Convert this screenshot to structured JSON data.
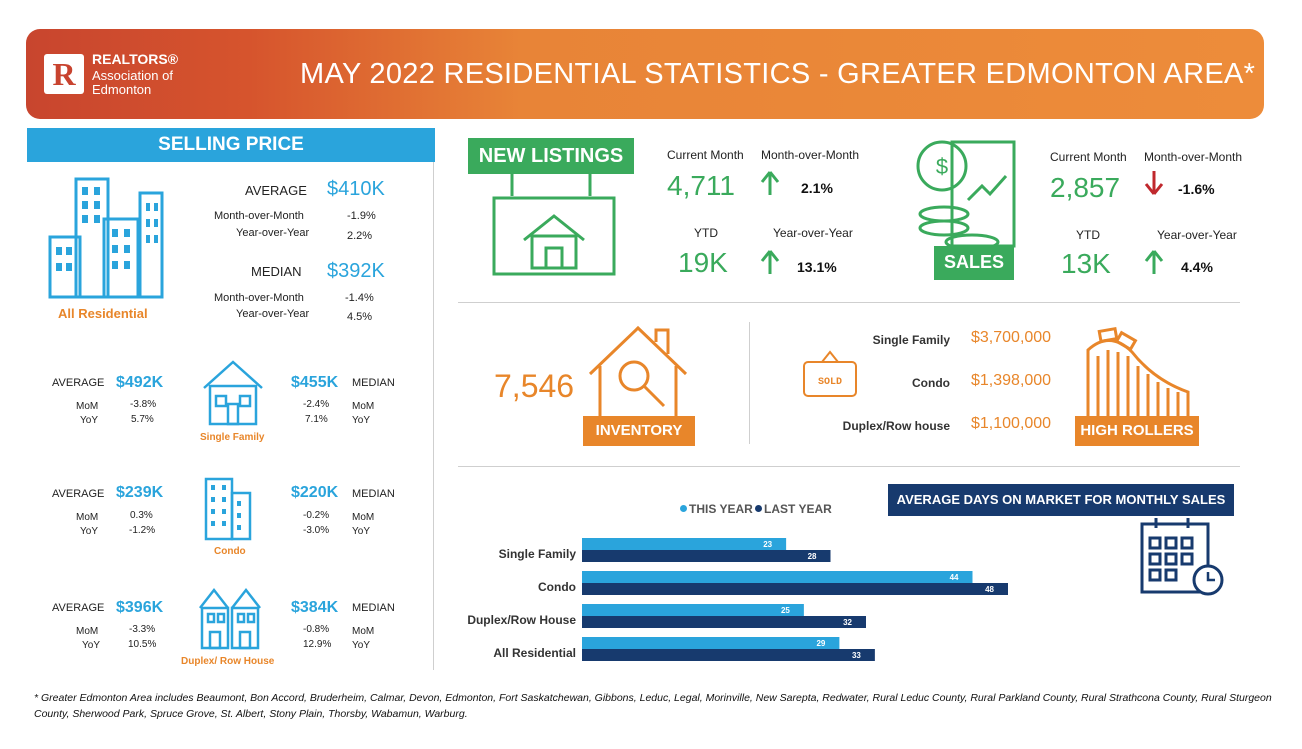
{
  "header": {
    "org_line1": "REALTORS®",
    "org_line2": "Association of",
    "org_line3": "Edmonton",
    "logo_letter": "R",
    "title": "MAY 2022 RESIDENTIAL STATISTICS - GREATER EDMONTON AREA*"
  },
  "selling_price": {
    "title": "SELLING PRICE",
    "all_residential": {
      "label": "All Residential",
      "average_label": "AVERAGE",
      "average_value": "$410K",
      "avg_mom_label": "Month-over-Month",
      "avg_mom": "-1.9%",
      "avg_yoy_label": "Year-over-Year",
      "avg_yoy": "2.2%",
      "median_label": "MEDIAN",
      "median_value": "$392K",
      "med_mom_label": "Month-over-Month",
      "med_mom": "-1.4%",
      "med_yoy_label": "Year-over-Year",
      "med_yoy": "4.5%"
    },
    "types": [
      {
        "label": "Single Family",
        "average_label": "AVERAGE",
        "average": "$492K",
        "avg_mom": "-3.8%",
        "avg_yoy": "5.7%",
        "median_label": "MEDIAN",
        "median": "$455K",
        "med_mom": "-2.4%",
        "med_yoy": "7.1%",
        "mom_label": "MoM",
        "yoy_label": "YoY"
      },
      {
        "label": "Condo",
        "average_label": "AVERAGE",
        "average": "$239K",
        "avg_mom": "0.3%",
        "avg_yoy": "-1.2%",
        "median_label": "MEDIAN",
        "median": "$220K",
        "med_mom": "-0.2%",
        "med_yoy": "-3.0%",
        "mom_label": "MoM",
        "yoy_label": "YoY"
      },
      {
        "label": "Duplex/ Row House",
        "average_label": "AVERAGE",
        "average": "$396K",
        "avg_mom": "-3.3%",
        "avg_yoy": "10.5%",
        "median_label": "MEDIAN",
        "median": "$384K",
        "med_mom": "-0.8%",
        "med_yoy": "12.9%",
        "mom_label": "MoM",
        "yoy_label": "YoY"
      }
    ]
  },
  "new_listings": {
    "title": "NEW  LISTINGS",
    "current_month_label": "Current Month",
    "current_month": "4,711",
    "mom_label": "Month-over-Month",
    "mom": "2.1%",
    "ytd_label": "YTD",
    "ytd": "19K",
    "yoy_label": "Year-over-Year",
    "yoy": "13.1%"
  },
  "sales": {
    "title": "SALES",
    "current_month_label": "Current Month",
    "current_month": "2,857",
    "mom_label": "Month-over-Month",
    "mom": "-1.6%",
    "ytd_label": "YTD",
    "ytd": "13K",
    "yoy_label": "Year-over-Year",
    "yoy": "4.4%"
  },
  "inventory": {
    "value": "7,546",
    "label": "INVENTORY"
  },
  "high_rollers": {
    "label": "HIGH ROLLERS",
    "sold_sign": "SOLD",
    "items": [
      {
        "type": "Single Family",
        "price": "$3,700,000"
      },
      {
        "type": "Condo",
        "price": "$1,398,000"
      },
      {
        "type": "Duplex/Row house",
        "price": "$1,100,000"
      }
    ]
  },
  "colors": {
    "blue": "#2aa4dc",
    "navy": "#173a6e",
    "green": "#3aaa5c",
    "orange": "#e8862a",
    "red": "#c0282d"
  },
  "chart_data": {
    "type": "bar",
    "orientation": "horizontal",
    "title": "AVERAGE DAYS ON MARKET FOR MONTHLY SALES",
    "categories": [
      "Single Family",
      "Condo",
      "Duplex/Row House",
      "All Residential"
    ],
    "series": [
      {
        "name": "THIS YEAR",
        "color": "#2aa4dc",
        "values": [
          23,
          44,
          25,
          29
        ]
      },
      {
        "name": "LAST YEAR",
        "color": "#173a6e",
        "values": [
          28,
          48,
          32,
          33
        ]
      }
    ],
    "legend": "top",
    "xlim": [
      0,
      50
    ],
    "grid": false
  },
  "footnote": "* Greater Edmonton Area includes Beaumont, Bon Accord, Bruderheim, Calmar, Devon, Edmonton, Fort Saskatchewan, Gibbons, Leduc, Legal, Morinville, New Sarepta, Redwater, Rural Leduc County, Rural Parkland County, Rural Strathcona County, Rural Sturgeon County, Sherwood Park, Spruce Grove, St. Albert, Stony Plain, Thorsby, Wabamun, Warburg."
}
